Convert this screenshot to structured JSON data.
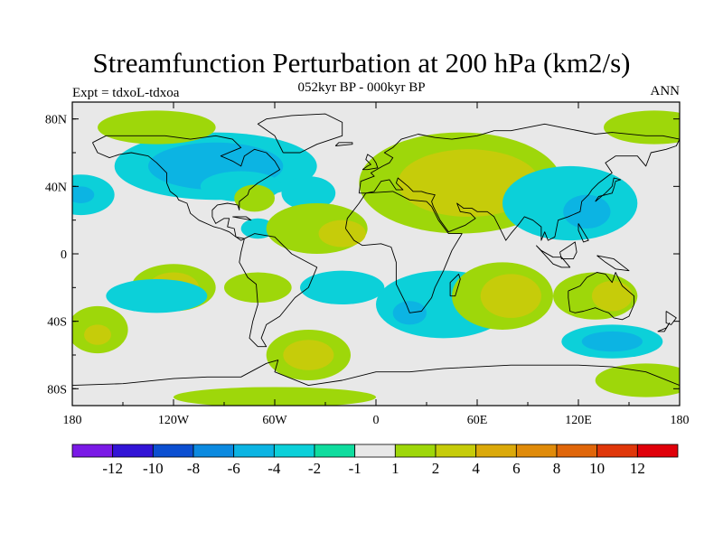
{
  "title": "Streamfunction Perturbation at 200 hPa (km2/s)",
  "subtitle": "052kyr BP - 000kyr BP",
  "left_label": "Expt = tdxoL-tdxoa",
  "right_label": "ANN",
  "map": {
    "lon_range": [
      -180,
      180
    ],
    "lat_range": [
      -90,
      90
    ],
    "background_color": "#e8e8e8",
    "lon_ticks": [
      {
        "value": -180,
        "label": "180"
      },
      {
        "value": -120,
        "label": "120W"
      },
      {
        "value": -60,
        "label": "60W"
      },
      {
        "value": 0,
        "label": "0"
      },
      {
        "value": 60,
        "label": "60E"
      },
      {
        "value": 120,
        "label": "120E"
      },
      {
        "value": 180,
        "label": "180"
      }
    ],
    "lat_ticks": [
      {
        "value": 80,
        "label": "80N"
      },
      {
        "value": 40,
        "label": "40N"
      },
      {
        "value": 0,
        "label": "0"
      },
      {
        "value": -40,
        "label": "40S"
      },
      {
        "value": -80,
        "label": "80S"
      }
    ]
  },
  "colorbar": {
    "colors": [
      "#7a1ae6",
      "#3214d6",
      "#0c4fd1",
      "#0c8ae0",
      "#0cb4e3",
      "#0cd0d9",
      "#0fdc9e",
      "#e8e8e8",
      "#9ed70a",
      "#c6cc0a",
      "#dba90a",
      "#e08b0a",
      "#e0660a",
      "#e0370a",
      "#e0000a"
    ],
    "labels": [
      "-12",
      "-10",
      "-8",
      "-6",
      "-4",
      "-2",
      "-1",
      "1",
      "2",
      "4",
      "6",
      "8",
      "10",
      "12"
    ]
  },
  "anomalies": [
    {
      "lon": -95,
      "lat": 52,
      "rx": 60,
      "ry": 20,
      "level": -2
    },
    {
      "lon": -95,
      "lat": 52,
      "rx": 40,
      "ry": 14,
      "level": -4
    },
    {
      "lon": -80,
      "lat": 40,
      "rx": 24,
      "ry": 9,
      "level": -2
    },
    {
      "lon": -175,
      "lat": 35,
      "rx": 20,
      "ry": 12,
      "level": -2
    },
    {
      "lon": -175,
      "lat": 35,
      "rx": 8,
      "ry": 5,
      "level": -4
    },
    {
      "lon": -40,
      "lat": 36,
      "rx": 16,
      "ry": 10,
      "level": -2
    },
    {
      "lon": -72,
      "lat": 33,
      "rx": 12,
      "ry": 8,
      "level": 2
    },
    {
      "lon": -70,
      "lat": 15,
      "rx": 10,
      "ry": 6,
      "level": -2
    },
    {
      "lon": -130,
      "lat": 75,
      "rx": 35,
      "ry": 10,
      "level": 2
    },
    {
      "lon": 165,
      "lat": 75,
      "rx": 30,
      "ry": 10,
      "level": 2
    },
    {
      "lon": -35,
      "lat": 15,
      "rx": 30,
      "ry": 15,
      "level": 2
    },
    {
      "lon": -20,
      "lat": 12,
      "rx": 14,
      "ry": 8,
      "level": 4
    },
    {
      "lon": 50,
      "lat": 42,
      "rx": 60,
      "ry": 30,
      "level": 2
    },
    {
      "lon": 55,
      "lat": 42,
      "rx": 42,
      "ry": 20,
      "level": 4
    },
    {
      "lon": 115,
      "lat": 30,
      "rx": 40,
      "ry": 22,
      "level": -2
    },
    {
      "lon": 125,
      "lat": 25,
      "rx": 14,
      "ry": 10,
      "level": -4
    },
    {
      "lon": -120,
      "lat": -20,
      "rx": 25,
      "ry": 14,
      "level": 2
    },
    {
      "lon": -120,
      "lat": -20,
      "rx": 15,
      "ry": 9,
      "level": 4
    },
    {
      "lon": -130,
      "lat": -25,
      "rx": 30,
      "ry": 10,
      "level": -2
    },
    {
      "lon": -70,
      "lat": -20,
      "rx": 20,
      "ry": 9,
      "level": 2
    },
    {
      "lon": -20,
      "lat": -20,
      "rx": 25,
      "ry": 10,
      "level": -2
    },
    {
      "lon": 40,
      "lat": -30,
      "rx": 40,
      "ry": 20,
      "level": -2
    },
    {
      "lon": 20,
      "lat": -35,
      "rx": 10,
      "ry": 7,
      "level": -4
    },
    {
      "lon": 75,
      "lat": -25,
      "rx": 30,
      "ry": 20,
      "level": 2
    },
    {
      "lon": 80,
      "lat": -25,
      "rx": 18,
      "ry": 13,
      "level": 4
    },
    {
      "lon": 130,
      "lat": -25,
      "rx": 25,
      "ry": 14,
      "level": 2
    },
    {
      "lon": 140,
      "lat": -25,
      "rx": 12,
      "ry": 9,
      "level": 4
    },
    {
      "lon": -165,
      "lat": -45,
      "rx": 18,
      "ry": 14,
      "level": 2
    },
    {
      "lon": -165,
      "lat": -48,
      "rx": 8,
      "ry": 6,
      "level": 4
    },
    {
      "lon": -40,
      "lat": -60,
      "rx": 25,
      "ry": 15,
      "level": 2
    },
    {
      "lon": -40,
      "lat": -60,
      "rx": 15,
      "ry": 9,
      "level": 4
    },
    {
      "lon": 140,
      "lat": -52,
      "rx": 30,
      "ry": 10,
      "level": -2
    },
    {
      "lon": 140,
      "lat": -52,
      "rx": 18,
      "ry": 6,
      "level": -4
    },
    {
      "lon": 160,
      "lat": -75,
      "rx": 30,
      "ry": 10,
      "level": 2
    },
    {
      "lon": -60,
      "lat": -85,
      "rx": 60,
      "ry": 6,
      "level": 2
    }
  ],
  "coastlines": [
    [
      [
        -168,
        66
      ],
      [
        -160,
        70
      ],
      [
        -140,
        70
      ],
      [
        -125,
        70
      ],
      [
        -110,
        68
      ],
      [
        -95,
        70
      ],
      [
        -85,
        68
      ],
      [
        -80,
        63
      ],
      [
        -92,
        58
      ],
      [
        -85,
        55
      ],
      [
        -80,
        52
      ],
      [
        -78,
        58
      ],
      [
        -72,
        62
      ],
      [
        -65,
        60
      ],
      [
        -60,
        55
      ],
      [
        -57,
        50
      ],
      [
        -65,
        45
      ],
      [
        -70,
        42
      ],
      [
        -75,
        38
      ],
      [
        -76,
        35
      ],
      [
        -81,
        31
      ],
      [
        -81,
        26
      ],
      [
        -82,
        29
      ],
      [
        -88,
        30
      ],
      [
        -94,
        29
      ],
      [
        -97,
        26
      ],
      [
        -97,
        22
      ],
      [
        -95,
        18
      ],
      [
        -90,
        21
      ],
      [
        -87,
        21
      ],
      [
        -88,
        16
      ],
      [
        -84,
        15
      ],
      [
        -83,
        10
      ],
      [
        -80,
        8
      ],
      [
        -78,
        9
      ],
      [
        -80,
        1
      ],
      [
        -81,
        -5
      ],
      [
        -76,
        -14
      ],
      [
        -71,
        -18
      ],
      [
        -70,
        -30
      ],
      [
        -73,
        -40
      ],
      [
        -75,
        -50
      ],
      [
        -70,
        -55
      ],
      [
        -65,
        -55
      ],
      [
        -68,
        -50
      ],
      [
        -65,
        -42
      ],
      [
        -57,
        -37
      ],
      [
        -48,
        -26
      ],
      [
        -40,
        -20
      ],
      [
        -35,
        -8
      ],
      [
        -50,
        0
      ],
      [
        -60,
        10
      ],
      [
        -72,
        12
      ],
      [
        -78,
        9
      ],
      [
        -83,
        10
      ],
      [
        -87,
        13
      ],
      [
        -92,
        15
      ],
      [
        -96,
        16
      ],
      [
        -105,
        20
      ],
      [
        -110,
        24
      ],
      [
        -112,
        30
      ],
      [
        -117,
        32
      ],
      [
        -118,
        34
      ],
      [
        -122,
        37
      ],
      [
        -124,
        42
      ],
      [
        -124,
        48
      ],
      [
        -130,
        54
      ],
      [
        -135,
        58
      ],
      [
        -145,
        60
      ],
      [
        -152,
        59
      ],
      [
        -158,
        57
      ],
      [
        -165,
        60
      ],
      [
        -168,
        66
      ]
    ],
    [
      [
        -55,
        60
      ],
      [
        -45,
        60
      ],
      [
        -35,
        65
      ],
      [
        -20,
        70
      ],
      [
        -20,
        78
      ],
      [
        -30,
        83
      ],
      [
        -50,
        82
      ],
      [
        -65,
        80
      ],
      [
        -70,
        77
      ],
      [
        -60,
        70
      ],
      [
        -55,
        60
      ]
    ],
    [
      [
        -18,
        15
      ],
      [
        -17,
        21
      ],
      [
        -10,
        30
      ],
      [
        -6,
        36
      ],
      [
        10,
        37
      ],
      [
        20,
        32
      ],
      [
        30,
        31
      ],
      [
        33,
        28
      ],
      [
        37,
        20
      ],
      [
        43,
        12
      ],
      [
        51,
        12
      ],
      [
        45,
        2
      ],
      [
        40,
        -10
      ],
      [
        35,
        -20
      ],
      [
        33,
        -26
      ],
      [
        27,
        -34
      ],
      [
        20,
        -35
      ],
      [
        18,
        -30
      ],
      [
        12,
        -18
      ],
      [
        12,
        -5
      ],
      [
        9,
        4
      ],
      [
        3,
        6
      ],
      [
        -8,
        5
      ],
      [
        -13,
        8
      ],
      [
        -18,
        15
      ]
    ],
    [
      [
        -10,
        36
      ],
      [
        -9,
        43
      ],
      [
        -1,
        46
      ],
      [
        -3,
        48
      ],
      [
        4,
        52
      ],
      [
        8,
        54
      ],
      [
        10,
        57
      ],
      [
        5,
        60
      ],
      [
        10,
        63
      ],
      [
        15,
        68
      ],
      [
        25,
        71
      ],
      [
        35,
        69
      ],
      [
        45,
        68
      ],
      [
        60,
        70
      ],
      [
        70,
        73
      ],
      [
        80,
        73
      ],
      [
        100,
        77
      ],
      [
        115,
        74
      ],
      [
        130,
        71
      ],
      [
        140,
        72
      ],
      [
        160,
        70
      ],
      [
        170,
        70
      ],
      [
        180,
        68
      ],
      [
        178,
        64
      ],
      [
        172,
        62
      ],
      [
        163,
        60
      ],
      [
        160,
        52
      ],
      [
        155,
        58
      ],
      [
        142,
        58
      ],
      [
        136,
        54
      ],
      [
        140,
        48
      ],
      [
        132,
        42
      ],
      [
        128,
        38
      ],
      [
        126,
        35
      ],
      [
        122,
        31
      ],
      [
        121,
        25
      ],
      [
        114,
        22
      ],
      [
        108,
        20
      ],
      [
        106,
        10
      ],
      [
        102,
        8
      ],
      [
        100,
        13
      ],
      [
        98,
        8
      ],
      [
        98,
        16
      ],
      [
        93,
        20
      ],
      [
        88,
        22
      ],
      [
        85,
        18
      ],
      [
        80,
        12
      ],
      [
        77,
        8
      ],
      [
        73,
        16
      ],
      [
        70,
        22
      ],
      [
        66,
        25
      ],
      [
        60,
        25
      ],
      [
        57,
        27
      ],
      [
        52,
        27
      ],
      [
        48,
        30
      ],
      [
        50,
        25
      ],
      [
        56,
        24
      ],
      [
        59,
        21
      ],
      [
        53,
        17
      ],
      [
        43,
        13
      ],
      [
        38,
        20
      ],
      [
        34,
        28
      ],
      [
        33,
        31
      ],
      [
        35,
        35
      ],
      [
        30,
        36
      ],
      [
        27,
        37
      ],
      [
        22,
        37
      ],
      [
        19,
        40
      ],
      [
        13,
        45
      ],
      [
        12,
        42
      ],
      [
        16,
        38
      ],
      [
        12,
        38
      ],
      [
        8,
        44
      ],
      [
        3,
        43
      ],
      [
        -1,
        37
      ],
      [
        -6,
        36
      ],
      [
        -10,
        36
      ]
    ],
    [
      [
        114,
        -22
      ],
      [
        114,
        -26
      ],
      [
        115,
        -34
      ],
      [
        118,
        -35
      ],
      [
        123,
        -34
      ],
      [
        130,
        -32
      ],
      [
        135,
        -34
      ],
      [
        138,
        -35
      ],
      [
        141,
        -38
      ],
      [
        146,
        -39
      ],
      [
        150,
        -37
      ],
      [
        153,
        -30
      ],
      [
        153,
        -25
      ],
      [
        146,
        -19
      ],
      [
        142,
        -11
      ],
      [
        140,
        -17
      ],
      [
        136,
        -12
      ],
      [
        131,
        -11
      ],
      [
        125,
        -14
      ],
      [
        121,
        -19
      ],
      [
        114,
        -22
      ]
    ],
    [
      [
        -180,
        -78
      ],
      [
        -150,
        -77
      ],
      [
        -120,
        -74
      ],
      [
        -100,
        -73
      ],
      [
        -80,
        -73
      ],
      [
        -65,
        -65
      ],
      [
        -58,
        -63
      ],
      [
        -60,
        -70
      ],
      [
        -40,
        -78
      ],
      [
        -20,
        -75
      ],
      [
        0,
        -70
      ],
      [
        20,
        -70
      ],
      [
        40,
        -68
      ],
      [
        60,
        -67
      ],
      [
        80,
        -66
      ],
      [
        100,
        -66
      ],
      [
        120,
        -66
      ],
      [
        140,
        -67
      ],
      [
        160,
        -70
      ],
      [
        170,
        -74
      ],
      [
        180,
        -78
      ]
    ],
    [
      [
        -8,
        50
      ],
      [
        -5,
        50
      ],
      [
        1,
        51
      ],
      [
        0,
        54
      ],
      [
        -2,
        57
      ],
      [
        -5,
        59
      ],
      [
        -6,
        56
      ],
      [
        -3,
        53
      ],
      [
        -5,
        52
      ],
      [
        -8,
        50
      ]
    ],
    [
      [
        130,
        31
      ],
      [
        132,
        34
      ],
      [
        136,
        35
      ],
      [
        140,
        36
      ],
      [
        141,
        39
      ],
      [
        142,
        43
      ],
      [
        145,
        44
      ],
      [
        141,
        45
      ],
      [
        140,
        40
      ],
      [
        136,
        36
      ],
      [
        130,
        31
      ]
    ],
    [
      [
        44,
        -25
      ],
      [
        47,
        -25
      ],
      [
        50,
        -15
      ],
      [
        49,
        -12
      ],
      [
        44,
        -17
      ],
      [
        44,
        -25
      ]
    ],
    [
      [
        95,
        5
      ],
      [
        105,
        -6
      ],
      [
        110,
        -8
      ],
      [
        115,
        -8
      ],
      [
        110,
        -2
      ],
      [
        105,
        -2
      ],
      [
        98,
        2
      ],
      [
        95,
        5
      ]
    ],
    [
      [
        109,
        1
      ],
      [
        115,
        5
      ],
      [
        118,
        7
      ],
      [
        119,
        1
      ],
      [
        117,
        -3
      ],
      [
        110,
        -3
      ],
      [
        109,
        1
      ]
    ],
    [
      [
        131,
        -1
      ],
      [
        141,
        -3
      ],
      [
        150,
        -10
      ],
      [
        142,
        -9
      ],
      [
        136,
        -5
      ],
      [
        131,
        -1
      ]
    ],
    [
      [
        172,
        -34
      ],
      [
        178,
        -38
      ],
      [
        175,
        -42
      ],
      [
        172,
        -41
      ],
      [
        172,
        -34
      ]
    ],
    [
      [
        167,
        -46
      ],
      [
        172,
        -44
      ],
      [
        174,
        -41
      ],
      [
        171,
        -46
      ],
      [
        167,
        -46
      ]
    ],
    [
      [
        -24,
        64
      ],
      [
        -14,
        65
      ],
      [
        -14,
        66
      ],
      [
        -22,
        66
      ],
      [
        -24,
        64
      ]
    ],
    [
      [
        -85,
        22
      ],
      [
        -74,
        20
      ],
      [
        -77,
        22
      ],
      [
        -85,
        22
      ]
    ],
    [
      [
        120,
        18
      ],
      [
        126,
        8
      ],
      [
        123,
        7
      ],
      [
        120,
        14
      ],
      [
        120,
        18
      ]
    ]
  ]
}
